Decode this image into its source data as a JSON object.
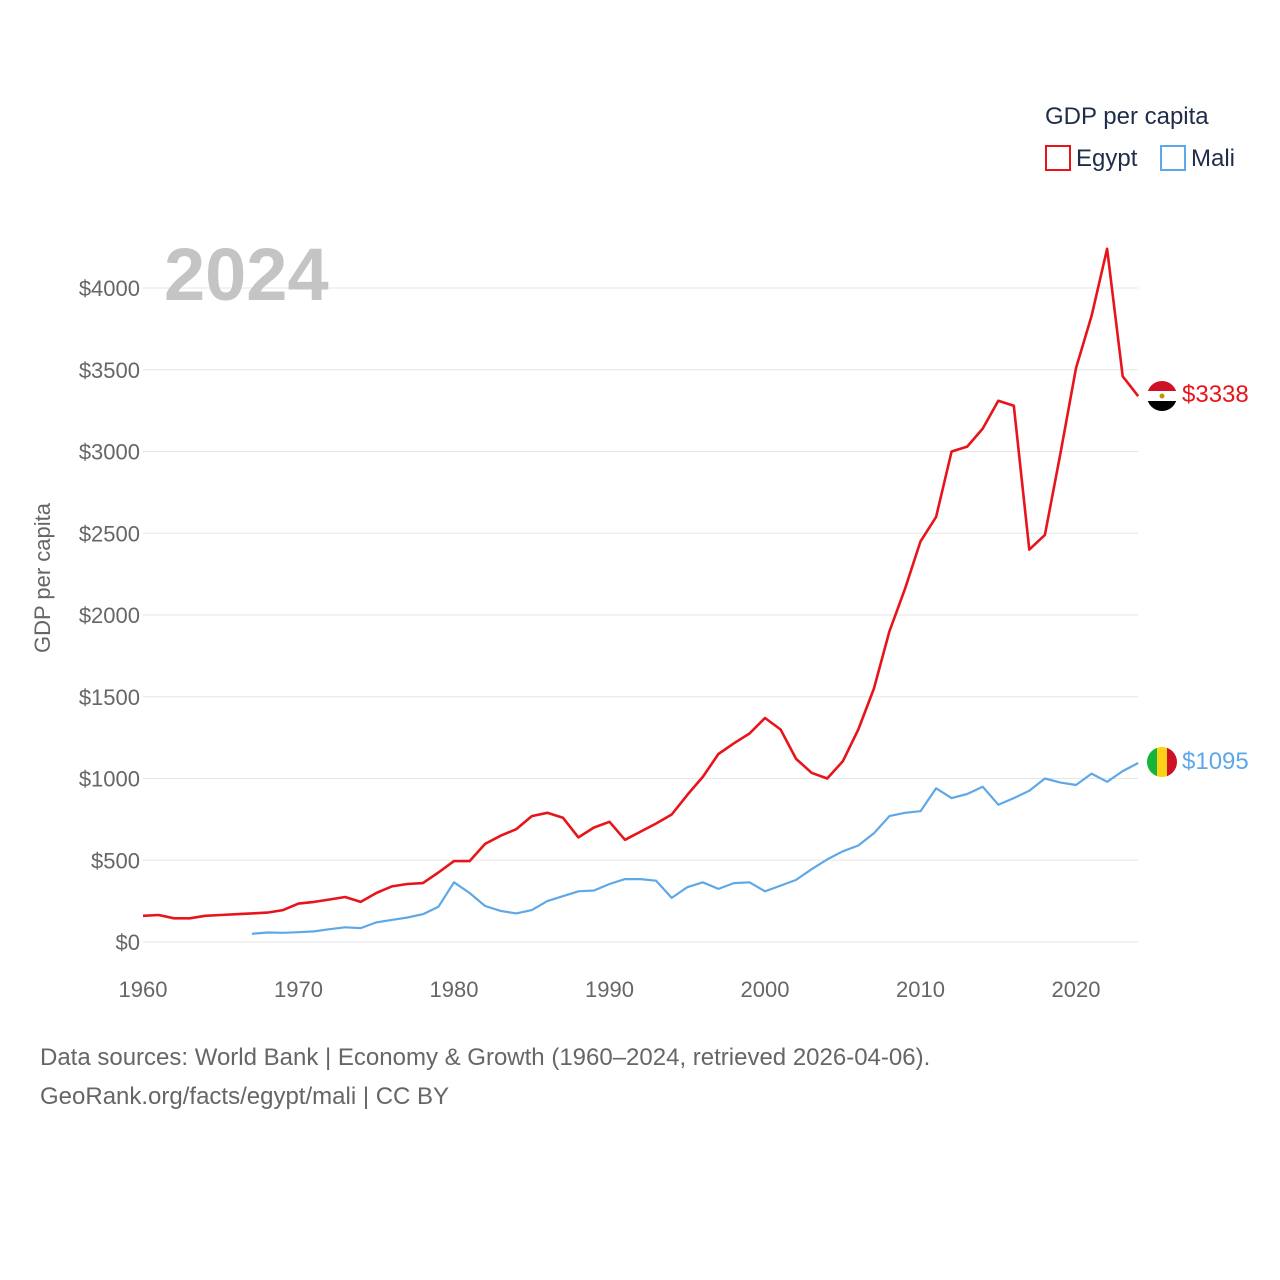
{
  "chart_data": {
    "type": "line",
    "year_label": "2024",
    "ylabel": "GDP per capita",
    "ylim": [
      0,
      4250
    ],
    "xlim": [
      1960,
      2024
    ],
    "y_ticks": [
      0,
      500,
      1000,
      1500,
      2000,
      2500,
      3000,
      3500,
      4000
    ],
    "y_tick_labels": [
      "$0",
      "$500",
      "$1000",
      "$1500",
      "$2000",
      "$2500",
      "$3000",
      "$3500",
      "$4000"
    ],
    "x_ticks": [
      1960,
      1970,
      1980,
      1990,
      2000,
      2010,
      2020
    ],
    "x_tick_labels": [
      "1960",
      "1970",
      "1980",
      "1990",
      "2000",
      "2010",
      "2020"
    ],
    "legend": {
      "title": "GDP per capita",
      "position": "top-right"
    },
    "series": [
      {
        "name": "Egypt",
        "color": "#e8141b",
        "end_label": "$3338",
        "flag": "egypt-flag",
        "x": [
          1960,
          1961,
          1962,
          1963,
          1964,
          1965,
          1966,
          1967,
          1968,
          1969,
          1970,
          1971,
          1972,
          1973,
          1974,
          1975,
          1976,
          1977,
          1978,
          1979,
          1980,
          1981,
          1982,
          1983,
          1984,
          1985,
          1986,
          1987,
          1988,
          1989,
          1990,
          1991,
          1992,
          1993,
          1994,
          1995,
          1996,
          1997,
          1998,
          1999,
          2000,
          2001,
          2002,
          2003,
          2004,
          2005,
          2006,
          2007,
          2008,
          2009,
          2010,
          2011,
          2012,
          2013,
          2014,
          2015,
          2016,
          2017,
          2018,
          2019,
          2020,
          2021,
          2022,
          2023,
          2024
        ],
        "values": [
          160,
          165,
          145,
          145,
          160,
          165,
          170,
          175,
          180,
          195,
          235,
          245,
          260,
          275,
          245,
          300,
          340,
          355,
          360,
          425,
          495,
          495,
          600,
          650,
          690,
          770,
          790,
          760,
          640,
          700,
          735,
          625,
          675,
          725,
          780,
          900,
          1010,
          1150,
          1215,
          1275,
          1370,
          1300,
          1120,
          1035,
          1000,
          1105,
          1300,
          1550,
          1900,
          2160,
          2450,
          2600,
          3000,
          3030,
          3140,
          3310,
          3280,
          2400,
          2490,
          2990,
          3510,
          3830,
          4240,
          3460,
          3338
        ]
      },
      {
        "name": "Mali",
        "color": "#5fa8e8",
        "end_label": "$1095",
        "flag": "mali-flag",
        "x": [
          1967,
          1968,
          1969,
          1970,
          1971,
          1972,
          1973,
          1974,
          1975,
          1976,
          1977,
          1978,
          1979,
          1980,
          1981,
          1982,
          1983,
          1984,
          1985,
          1986,
          1987,
          1988,
          1989,
          1990,
          1991,
          1992,
          1993,
          1994,
          1995,
          1996,
          1997,
          1998,
          1999,
          2000,
          2001,
          2002,
          2003,
          2004,
          2005,
          2006,
          2007,
          2008,
          2009,
          2010,
          2011,
          2012,
          2013,
          2014,
          2015,
          2016,
          2017,
          2018,
          2019,
          2020,
          2021,
          2022,
          2023,
          2024
        ],
        "values": [
          50,
          58,
          56,
          60,
          65,
          78,
          90,
          85,
          120,
          135,
          150,
          170,
          215,
          365,
          300,
          220,
          190,
          175,
          195,
          250,
          280,
          310,
          315,
          355,
          385,
          385,
          375,
          270,
          335,
          365,
          325,
          360,
          365,
          310,
          345,
          380,
          445,
          505,
          555,
          590,
          665,
          770,
          790,
          800,
          940,
          880,
          905,
          950,
          840,
          880,
          925,
          1000,
          975,
          960,
          1030,
          980,
          1045,
          1095
        ]
      }
    ]
  },
  "footer": {
    "line1": "Data sources: World Bank | Economy & Growth (1960–2024, retrieved 2026-04-06).",
    "line2": "GeoRank.org/facts/egypt/mali | CC BY"
  }
}
